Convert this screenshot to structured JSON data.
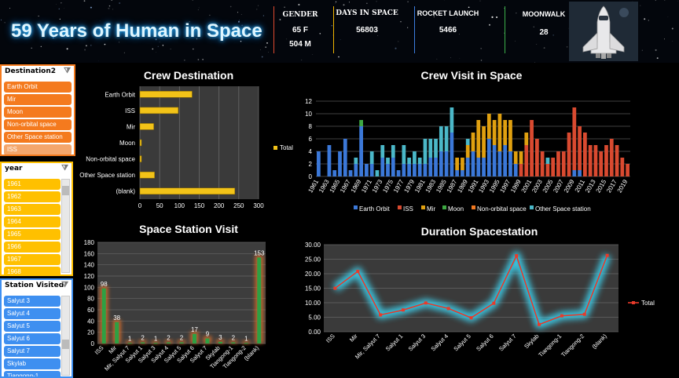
{
  "header": {
    "title": "59 Years of Human in Space",
    "kpis": [
      {
        "label": "GENDER",
        "values": [
          "65 F",
          "504 M"
        ],
        "color": "#e04a2f"
      },
      {
        "label": "DAYS IN SPACE",
        "values": [
          "56803"
        ],
        "color": "#f0b400"
      },
      {
        "label": "ROCKET LAUNCH",
        "values": [
          "5466"
        ],
        "color": "#3b7de0"
      },
      {
        "label": "MOONWALK",
        "values": [
          "28"
        ],
        "color": "#3bb04a"
      }
    ]
  },
  "slicers": {
    "destination": {
      "title": "Destination2",
      "items": [
        "Earth Orbit",
        "Mir",
        "Moon",
        "Non-orbital space",
        "Other Space station",
        "ISS"
      ],
      "selected": "ISS"
    },
    "year": {
      "title": "year",
      "items": [
        "1961",
        "1962",
        "1963",
        "1964",
        "1965",
        "1966",
        "1967",
        "1968"
      ]
    },
    "station": {
      "title": "Station Visited",
      "items": [
        "Salyut 3",
        "Salyut 4",
        "Salyut 5",
        "Salyut 6",
        "Salyut 7",
        "Skylab",
        "Tiangong-1"
      ]
    }
  },
  "chart_data": [
    {
      "id": "crew-destination",
      "type": "bar",
      "orientation": "horizontal",
      "title": "Crew Destination",
      "categories": [
        "Earth Orbit",
        "ISS",
        "Mir",
        "Moon",
        "Non-orbital space",
        "Other Space station",
        "(blank)"
      ],
      "values": [
        132,
        97,
        35,
        4,
        4,
        37,
        240
      ],
      "legend": "Total",
      "xlim": [
        0,
        300
      ],
      "xticks": [
        0,
        50,
        100,
        150,
        200,
        250,
        300
      ],
      "color": "#f2c318"
    },
    {
      "id": "crew-visit",
      "type": "bar",
      "stacked": true,
      "title": "Crew Visit in Space",
      "ylim": [
        0,
        12
      ],
      "yticks": [
        0,
        2,
        4,
        6,
        8,
        10,
        12
      ],
      "x_labels": [
        "1961",
        "1963",
        "1965",
        "1967",
        "1969",
        "1971",
        "1973",
        "1975",
        "1977",
        "1979",
        "1981",
        "1983",
        "1985",
        "1987",
        "1989",
        "1991",
        "1993",
        "1995",
        "1997",
        "1999",
        "2001",
        "2003",
        "2005",
        "2007",
        "2009",
        "2011",
        "2013",
        "2015",
        "2017",
        "2019"
      ],
      "legend_position": "bottom",
      "years": [
        1961,
        1962,
        1963,
        1964,
        1965,
        1966,
        1967,
        1968,
        1969,
        1970,
        1971,
        1972,
        1973,
        1974,
        1975,
        1976,
        1977,
        1978,
        1979,
        1980,
        1981,
        1982,
        1983,
        1984,
        1985,
        1986,
        1987,
        1988,
        1989,
        1990,
        1991,
        1992,
        1993,
        1994,
        1995,
        1996,
        1997,
        1998,
        1999,
        2000,
        2001,
        2002,
        2003,
        2004,
        2005,
        2006,
        2007,
        2008,
        2009,
        2010,
        2011,
        2012,
        2013,
        2014,
        2015,
        2016,
        2017,
        2018,
        2019
      ],
      "series": [
        {
          "name": "Earth Orbit",
          "color": "#3b78d8",
          "values": [
            4,
            0,
            5,
            1,
            4,
            6,
            1,
            2,
            8,
            2,
            2,
            0,
            3,
            2,
            3,
            1,
            2,
            2,
            2,
            2,
            2,
            3,
            3,
            4,
            4,
            7,
            1,
            1,
            3,
            4,
            3,
            3,
            6,
            5,
            4,
            5,
            4,
            2,
            0,
            0,
            0,
            0,
            0,
            0,
            0,
            0,
            0,
            0,
            1,
            1,
            0,
            0,
            0,
            0,
            0,
            0,
            0,
            0,
            0
          ]
        },
        {
          "name": "ISS",
          "color": "#d94a30",
          "values": [
            0,
            0,
            0,
            0,
            0,
            0,
            0,
            0,
            0,
            0,
            0,
            0,
            0,
            0,
            0,
            0,
            0,
            0,
            0,
            0,
            0,
            0,
            0,
            0,
            0,
            0,
            0,
            0,
            0,
            0,
            0,
            0,
            0,
            0,
            0,
            0,
            0,
            0,
            2,
            5,
            9,
            6,
            4,
            2,
            3,
            4,
            4,
            7,
            10,
            7,
            7,
            5,
            5,
            4,
            5,
            6,
            5,
            3,
            2
          ]
        },
        {
          "name": "Mir",
          "color": "#e0a010",
          "values": [
            0,
            0,
            0,
            0,
            0,
            0,
            0,
            0,
            0,
            0,
            0,
            0,
            0,
            0,
            0,
            0,
            0,
            0,
            0,
            0,
            0,
            0,
            0,
            0,
            0,
            0,
            2,
            2,
            2,
            3,
            6,
            5,
            4,
            4,
            6,
            4,
            5,
            2,
            2,
            2,
            0,
            0,
            0,
            0,
            0,
            0,
            0,
            0,
            0,
            0,
            0,
            0,
            0,
            0,
            0,
            0,
            0,
            0,
            0
          ]
        },
        {
          "name": "Moon",
          "color": "#3ea843",
          "values": [
            0,
            0,
            0,
            0,
            0,
            0,
            0,
            0,
            1,
            0,
            0,
            0,
            0,
            0,
            0,
            0,
            0,
            0,
            0,
            0,
            0,
            0,
            0,
            0,
            0,
            0,
            0,
            0,
            0,
            0,
            0,
            0,
            0,
            0,
            0,
            0,
            0,
            0,
            0,
            0,
            0,
            0,
            0,
            0,
            0,
            0,
            0,
            0,
            0,
            0,
            0,
            0,
            0,
            0,
            0,
            0,
            0,
            0,
            0
          ]
        },
        {
          "name": "Non-orbital space",
          "color": "#f07820",
          "values": [
            0,
            0,
            0,
            0,
            0,
            0,
            0,
            0,
            0,
            0,
            0,
            0,
            0,
            0,
            0,
            0,
            0,
            0,
            0,
            0,
            0,
            0,
            0,
            0,
            0,
            0,
            0,
            0,
            0,
            0,
            0,
            0,
            0,
            0,
            0,
            0,
            0,
            0,
            0,
            0,
            0,
            0,
            0,
            0,
            0,
            0,
            0,
            0,
            0,
            0,
            0,
            0,
            0,
            0,
            0,
            0,
            0,
            0,
            0
          ]
        },
        {
          "name": "Other Space station",
          "color": "#4bb8c8",
          "values": [
            0,
            0,
            0,
            0,
            0,
            0,
            0,
            1,
            0,
            0,
            2,
            1,
            2,
            1,
            2,
            0,
            3,
            1,
            2,
            1,
            4,
            3,
            3,
            4,
            4,
            4,
            0,
            0,
            1,
            0,
            0,
            0,
            0,
            0,
            0,
            0,
            0,
            0,
            0,
            0,
            0,
            0,
            0,
            1,
            0,
            0,
            0,
            0,
            0,
            0,
            0,
            0,
            0,
            0,
            0,
            0,
            0,
            0,
            0
          ]
        }
      ]
    },
    {
      "id": "space-station-visit",
      "type": "bar",
      "title": "Space Station Visit",
      "categories": [
        "ISS",
        "Mir",
        "Mir, Salyut 7",
        "Salyut 1",
        "Salyut 3",
        "Salyut 4",
        "Salyut 5",
        "Salyut 6",
        "Salyut 7",
        "Skylab",
        "Tiangong-1",
        "Tiangong-2",
        "(blank)"
      ],
      "values": [
        98,
        38,
        1,
        2,
        1,
        2,
        2,
        17,
        9,
        3,
        2,
        1,
        153
      ],
      "legend": "Total",
      "ylim": [
        0,
        180
      ],
      "yticks": [
        0,
        20,
        40,
        60,
        80,
        100,
        120,
        140,
        160,
        180
      ],
      "color": "#2ea043"
    },
    {
      "id": "duration-spacestation",
      "type": "line",
      "title": "Duration Spacestation",
      "categories": [
        "ISS",
        "Mir",
        "Mir, Salyut 7",
        "Salyut 1",
        "Salyut 3",
        "Salyut 4",
        "Salyut 5",
        "Salyut 6",
        "Salyut 7",
        "Skylab",
        "Tiangong-1",
        "Tiangong-2",
        "(blank)"
      ],
      "values": [
        15.0,
        20.8,
        5.8,
        7.5,
        9.9,
        8.0,
        4.8,
        9.8,
        26.2,
        2.5,
        5.5,
        6.0,
        26.3
      ],
      "legend": "Total",
      "ylim": [
        0,
        30
      ],
      "yticks": [
        "0.00",
        "5.00",
        "10.00",
        "15.00",
        "20.00",
        "25.00",
        "30.00"
      ],
      "color": "#e83a2a"
    }
  ]
}
